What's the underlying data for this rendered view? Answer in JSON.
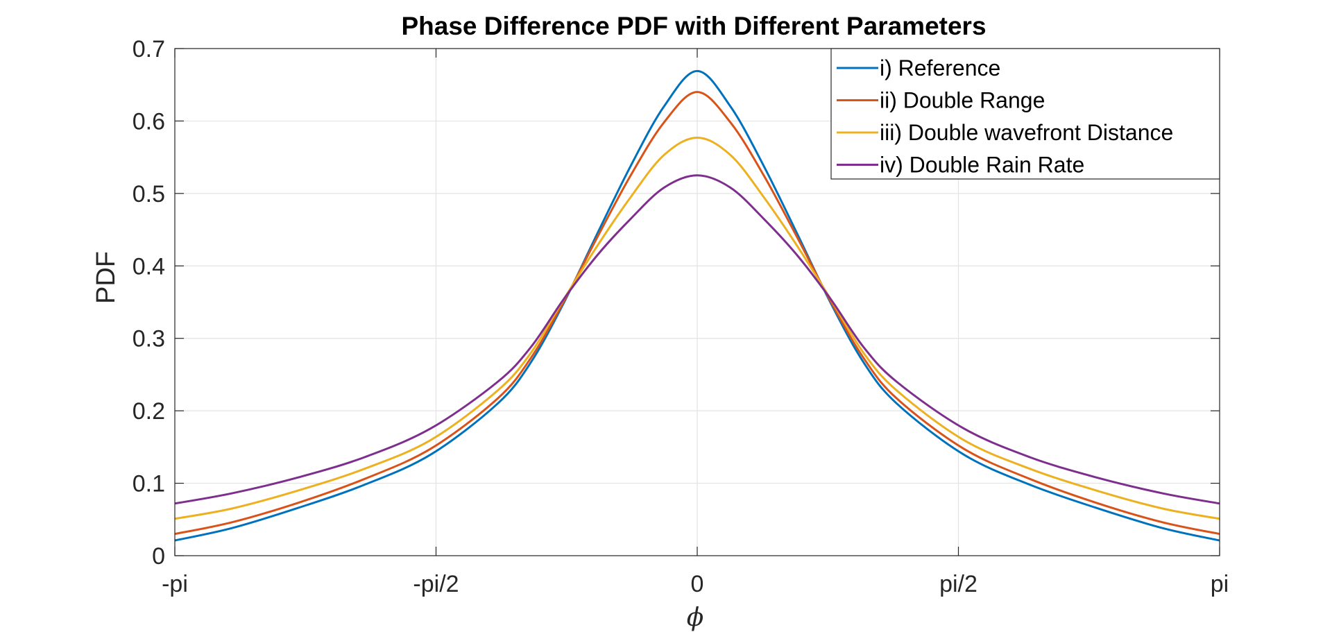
{
  "chart_data": {
    "type": "line",
    "title": "Phase Difference PDF with Different Parameters",
    "xlabel": "ϕ",
    "ylabel": "PDF",
    "xlim": [
      -3.14159,
      3.14159
    ],
    "ylim": [
      0,
      0.7
    ],
    "grid": true,
    "legend_location": "top-right",
    "x_ticks": [
      {
        "value": -3.14159,
        "label": "-pi"
      },
      {
        "value": -1.5708,
        "label": "-pi/2"
      },
      {
        "value": 0,
        "label": "0"
      },
      {
        "value": 1.5708,
        "label": "pi/2"
      },
      {
        "value": 3.14159,
        "label": "pi"
      }
    ],
    "y_ticks": [
      {
        "value": 0,
        "label": "0"
      },
      {
        "value": 0.1,
        "label": "0.1"
      },
      {
        "value": 0.2,
        "label": "0.2"
      },
      {
        "value": 0.3,
        "label": "0.3"
      },
      {
        "value": 0.4,
        "label": "0.4"
      },
      {
        "value": 0.5,
        "label": "0.5"
      },
      {
        "value": 0.6,
        "label": "0.6"
      },
      {
        "value": 0.7,
        "label": "0.7"
      }
    ],
    "x": [
      -3.14159,
      -2.8,
      -2.4,
      -2.0,
      -1.6,
      -1.2,
      -1.0,
      -0.8,
      -0.6,
      -0.4,
      -0.2,
      0,
      0.2,
      0.4,
      0.6,
      0.8,
      1.0,
      1.2,
      1.6,
      2.0,
      2.4,
      2.8,
      3.14159
    ],
    "series": [
      {
        "name": "i) Reference",
        "color": "#0072BD",
        "values": [
          0.021,
          0.038,
          0.066,
          0.098,
          0.14,
          0.21,
          0.267,
          0.35,
          0.445,
          0.538,
          0.62,
          0.669,
          0.62,
          0.538,
          0.445,
          0.35,
          0.267,
          0.21,
          0.14,
          0.098,
          0.066,
          0.038,
          0.021
        ]
      },
      {
        "name": "ii) Double Range",
        "color": "#D95319",
        "values": [
          0.03,
          0.046,
          0.073,
          0.106,
          0.148,
          0.217,
          0.273,
          0.352,
          0.44,
          0.525,
          0.598,
          0.64,
          0.598,
          0.525,
          0.44,
          0.352,
          0.273,
          0.217,
          0.148,
          0.106,
          0.073,
          0.046,
          0.03
        ]
      },
      {
        "name": "iii) Double wavefront Distance",
        "color": "#EDB120",
        "values": [
          0.051,
          0.065,
          0.09,
          0.12,
          0.16,
          0.228,
          0.28,
          0.355,
          0.428,
          0.495,
          0.553,
          0.577,
          0.553,
          0.495,
          0.428,
          0.355,
          0.28,
          0.228,
          0.16,
          0.12,
          0.09,
          0.065,
          0.051
        ]
      },
      {
        "name": "iv) Double Rain Rate",
        "color": "#7E2F8E",
        "values": [
          0.072,
          0.086,
          0.108,
          0.136,
          0.176,
          0.24,
          0.288,
          0.355,
          0.415,
          0.465,
          0.508,
          0.525,
          0.508,
          0.465,
          0.415,
          0.355,
          0.288,
          0.24,
          0.176,
          0.136,
          0.108,
          0.086,
          0.072
        ]
      }
    ]
  }
}
